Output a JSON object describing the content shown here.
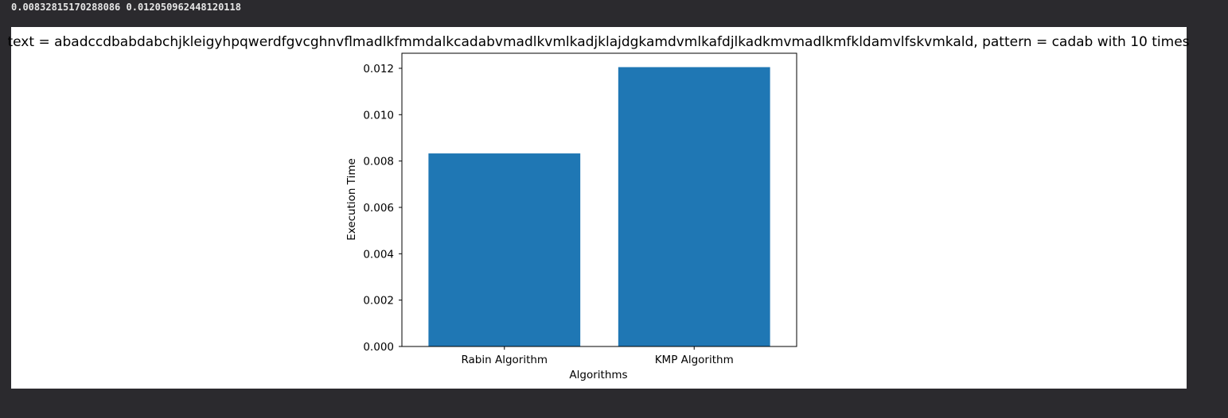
{
  "output": {
    "printed_line": "0.00832815170288086 0.012050962448120118"
  },
  "colors": {
    "page_background": "#2b2a2e",
    "figure_background": "#ffffff",
    "bar": "#1f77b4",
    "axis": "#000000"
  },
  "chart_data": {
    "type": "bar",
    "title": "text = abadccdbabdabchjkleigyhpqwerdfgvcghnvflmadlkfmmdalkcadabvmadlkvmlkadjklajdgkamdvmlkafdjlkadkmvmadlkmfkldamvlfskvmkald, pattern = cadab  with 10 times",
    "xlabel": "Algorithms",
    "ylabel": "Execution Time",
    "categories": [
      "Rabin Algorithm",
      "KMP Algorithm"
    ],
    "values": [
      0.00832815170288086,
      0.012050962448120118
    ],
    "ylim": [
      0,
      0.01265
    ],
    "yticks": [
      0.0,
      0.002,
      0.004,
      0.006,
      0.008,
      0.01,
      0.012
    ],
    "ytick_labels": [
      "0.000",
      "0.002",
      "0.004",
      "0.006",
      "0.008",
      "0.010",
      "0.012"
    ],
    "grid": false,
    "legend": "none"
  }
}
